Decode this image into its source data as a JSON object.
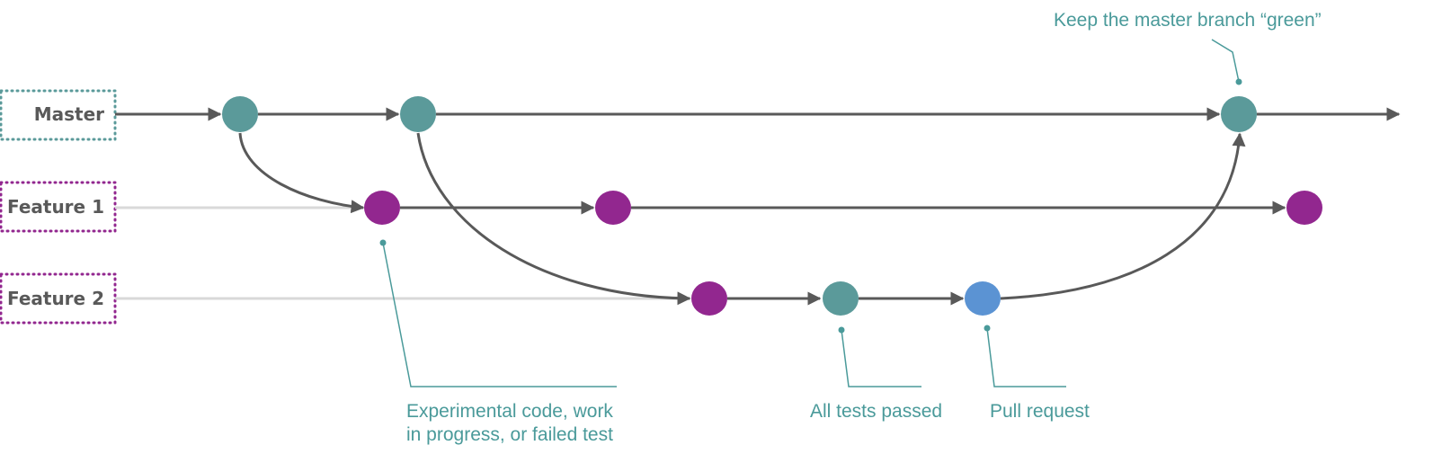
{
  "colors": {
    "master": "#5b9a9a",
    "feature": "#92278f",
    "pull_request": "#5b93d3",
    "line": "#595959",
    "faint_line": "#d9d9d9",
    "annotation": "#4a9a9a"
  },
  "branches": {
    "master": "Master",
    "feature1": "Feature 1",
    "feature2": "Feature 2"
  },
  "annotations": {
    "keep_green": "Keep the master branch “green”",
    "experimental_line1": "Experimental code, work",
    "experimental_line2": "in progress, or failed test",
    "tests_passed": "All tests passed",
    "pull_request": "Pull request"
  }
}
